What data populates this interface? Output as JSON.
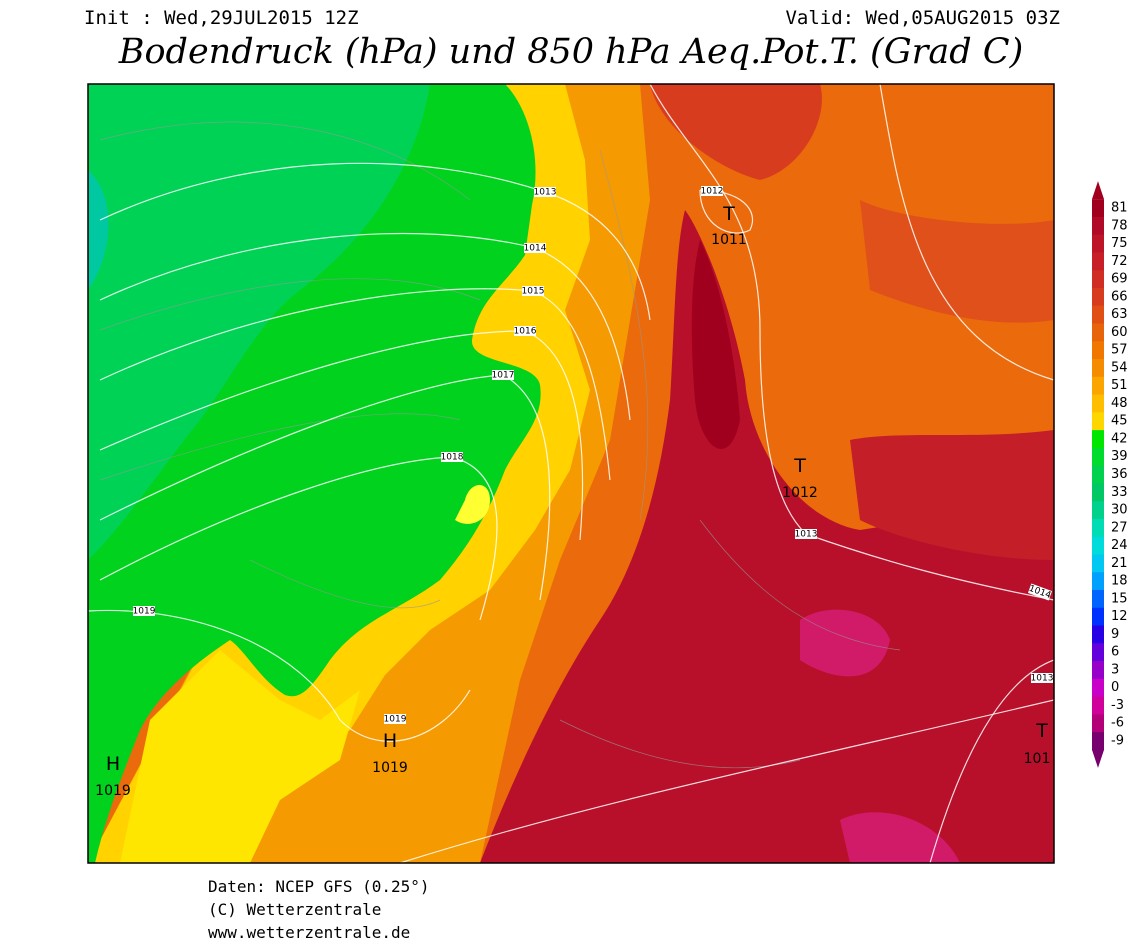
{
  "header": {
    "init": "Init : Wed,29JUL2015 12Z",
    "valid": "Valid: Wed,05AUG2015 03Z",
    "title": "Bodendruck (hPa) und 850 hPa Aeq.Pot.T. (Grad C)"
  },
  "map": {
    "pressure_centers": [
      {
        "symbol": "H",
        "value": 1019
      },
      {
        "symbol": "H",
        "value": 1019
      },
      {
        "symbol": "T",
        "value": 1011
      },
      {
        "symbol": "T",
        "value": 1012
      },
      {
        "symbol": "T",
        "value": 101
      }
    ],
    "isobar_labels": [
      1013,
      1014,
      1015,
      1016,
      1017,
      1018,
      1019,
      1019,
      1012,
      1013,
      1014,
      1013
    ]
  },
  "colorbar": {
    "levels": [
      81,
      78,
      75,
      72,
      69,
      66,
      63,
      60,
      57,
      54,
      51,
      48,
      45,
      42,
      39,
      36,
      33,
      30,
      27,
      24,
      21,
      18,
      15,
      12,
      9,
      6,
      3,
      0,
      -3,
      -6,
      -9
    ],
    "colors": [
      "#a0001e",
      "#b00a28",
      "#be1428",
      "#c81e28",
      "#d02d23",
      "#d83c1e",
      "#e05014",
      "#e8640a",
      "#f07800",
      "#f58c00",
      "#faa500",
      "#ffbe00",
      "#ffd700",
      "#00e600",
      "#00dc2d",
      "#00d250",
      "#00c864",
      "#00d28c",
      "#00dcb4",
      "#00dcdc",
      "#00c8f0",
      "#00a0ff",
      "#0064ff",
      "#0032ff",
      "#2800e6",
      "#6400dc",
      "#9600c8",
      "#c800c8",
      "#d2009b",
      "#b40078",
      "#78006e"
    ]
  },
  "footer": {
    "lines": [
      "Daten: NCEP GFS (0.25°)",
      "(C) Wetterzentrale",
      "www.wetterzentrale.de"
    ]
  }
}
